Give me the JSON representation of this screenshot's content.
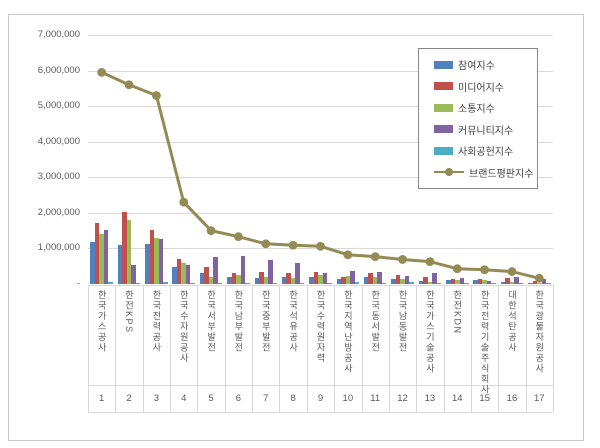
{
  "chart_data": {
    "type": "bar",
    "title": "",
    "categories": [
      "한국가스공사",
      "한전KPS",
      "한국전력공사",
      "한국수자원공사",
      "한국서부발전",
      "한국남부발전",
      "한국중부발전",
      "한국석유공사",
      "한국수력원자력",
      "한국지역난방공사",
      "한국동서발전",
      "한국남동발전",
      "한국가스기술공사",
      "한전KDN",
      "한국전력기술주식회사",
      "대한석탄공사",
      "한국광물자원공사"
    ],
    "ranks": [
      "1",
      "2",
      "3",
      "4",
      "5",
      "6",
      "7",
      "8",
      "9",
      "10",
      "11",
      "12",
      "13",
      "14",
      "15",
      "16",
      "17"
    ],
    "series": [
      {
        "name": "참여지수",
        "type": "bar",
        "color": "#4F81BD",
        "values": [
          1170000,
          1100000,
          1120000,
          470000,
          300000,
          210000,
          160000,
          190000,
          190000,
          130000,
          190000,
          130000,
          90000,
          110000,
          120000,
          65000,
          40000
        ]
      },
      {
        "name": "미디어지수",
        "type": "bar",
        "color": "#C0504D",
        "values": [
          1720000,
          2020000,
          1520000,
          700000,
          490000,
          300000,
          350000,
          300000,
          330000,
          210000,
          300000,
          250000,
          190000,
          130000,
          150000,
          160000,
          90000
        ]
      },
      {
        "name": "소통지수",
        "type": "bar",
        "color": "#9BBB59",
        "values": [
          1410000,
          1800000,
          1290000,
          590000,
          210000,
          250000,
          190000,
          160000,
          250000,
          230000,
          190000,
          130000,
          70000,
          110000,
          120000,
          65000,
          25000
        ]
      },
      {
        "name": "커뮤니티지수",
        "type": "bar",
        "color": "#8064A2",
        "values": [
          1520000,
          535000,
          1260000,
          530000,
          770000,
          790000,
          680000,
          580000,
          300000,
          370000,
          350000,
          230000,
          300000,
          160000,
          90000,
          190000,
          130000
        ]
      },
      {
        "name": "사회공헌지수",
        "type": "bar",
        "color": "#4BACC6",
        "values": [
          65000,
          40000,
          45000,
          30000,
          25000,
          30000,
          20000,
          25000,
          20000,
          65000,
          20000,
          70000,
          40000,
          25000,
          20000,
          30000,
          20000
        ]
      },
      {
        "name": "브랜드평판지수",
        "type": "line",
        "color": "#948A54",
        "values": [
          5950000,
          5600000,
          5300000,
          2300000,
          1500000,
          1330000,
          1130000,
          1090000,
          1060000,
          820000,
          770000,
          690000,
          630000,
          430000,
          400000,
          350000,
          160000
        ]
      }
    ],
    "y_axis": {
      "min": 0,
      "max": 7000000,
      "ticks": [
        {
          "label": "7,000,000",
          "value": 7000000
        },
        {
          "label": "6,000,000",
          "value": 6000000
        },
        {
          "label": "5,000,000",
          "value": 5000000
        },
        {
          "label": "4,000,000",
          "value": 4000000
        },
        {
          "label": "3,000,000",
          "value": 3000000
        },
        {
          "label": "2,000,000",
          "value": 2000000
        },
        {
          "label": "1,000,000",
          "value": 1000000
        },
        {
          "label": "-",
          "value": 0
        }
      ],
      "grid": true
    },
    "legend_position": "inside-top-right"
  },
  "colors": {
    "background": "#FFFFFF",
    "frame_border": "#C9C9C9",
    "gridline": "#D9D9D9",
    "axis_text": "#595959",
    "legend_border": "#868686",
    "legend_text": "#3F3F3F"
  }
}
